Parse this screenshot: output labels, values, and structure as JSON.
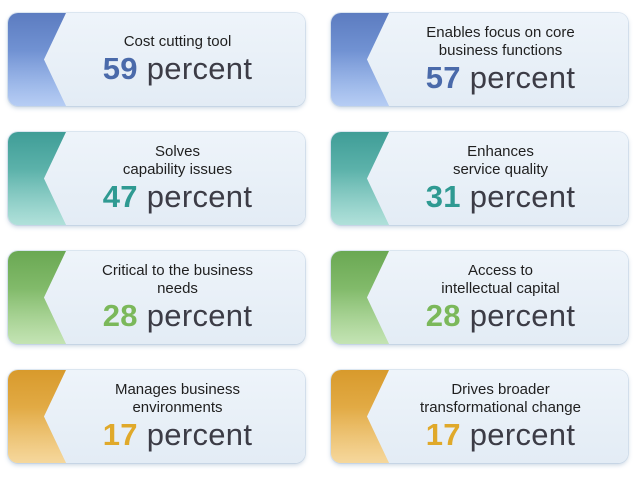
{
  "colors": {
    "blue": "#4a6aaa",
    "teal": "#2f9a92",
    "green": "#7bb85a",
    "gold": "#e0a92a"
  },
  "unit": "percent",
  "cards": [
    {
      "label": "Cost cutting tool",
      "value": "59"
    },
    {
      "label": "Enables focus on core\nbusiness functions",
      "value": "57"
    },
    {
      "label": "Solves\ncapability issues",
      "value": "47"
    },
    {
      "label": "Enhances\nservice quality",
      "value": "31"
    },
    {
      "label": "Critical to the business\nneeds",
      "value": "28"
    },
    {
      "label": "Access to\nintellectual capital",
      "value": "28"
    },
    {
      "label": "Manages business\nenvironments",
      "value": "17"
    },
    {
      "label": "Drives broader\ntransformational change",
      "value": "17"
    }
  ]
}
